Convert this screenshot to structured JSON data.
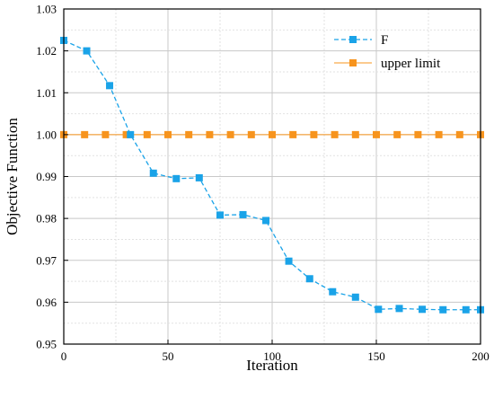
{
  "chart_data": {
    "type": "line",
    "xlabel": "Iteration",
    "ylabel": "Objective Function",
    "xlim": [
      0,
      200
    ],
    "ylim": [
      0.95,
      1.03
    ],
    "x_ticks": [
      "0",
      "50",
      "100",
      "150",
      "200"
    ],
    "y_ticks": [
      "0.95",
      "0.96",
      "0.97",
      "0.98",
      "0.99",
      "1.00",
      "1.01",
      "1.02",
      "1.03"
    ],
    "grid": true,
    "legend_position": "top-right",
    "series": [
      {
        "name": "F",
        "color": "#1aa3e8",
        "line_style": "dashed",
        "marker": "square",
        "x": [
          0,
          11,
          22,
          32,
          43,
          54,
          65,
          75,
          86,
          97,
          108,
          118,
          129,
          140,
          151,
          161,
          172,
          182,
          193,
          200
        ],
        "y": [
          1.0225,
          1.02,
          1.0117,
          1.0,
          0.9908,
          0.9895,
          0.9897,
          0.9808,
          0.9809,
          0.9795,
          0.9698,
          0.9656,
          0.9625,
          0.9612,
          0.9583,
          0.9585,
          0.9583,
          0.9582,
          0.9582,
          0.9582
        ]
      },
      {
        "name": "upper limit",
        "color": "#f7941d",
        "line_style": "solid",
        "marker": "square",
        "x": [
          0,
          10,
          20,
          30,
          40,
          50,
          60,
          70,
          80,
          90,
          100,
          110,
          120,
          130,
          140,
          150,
          160,
          170,
          180,
          190,
          200
        ],
        "y": [
          1.0,
          1.0,
          1.0,
          1.0,
          1.0,
          1.0,
          1.0,
          1.0,
          1.0,
          1.0,
          1.0,
          1.0,
          1.0,
          1.0,
          1.0,
          1.0,
          1.0,
          1.0,
          1.0,
          1.0,
          1.0
        ]
      }
    ]
  }
}
